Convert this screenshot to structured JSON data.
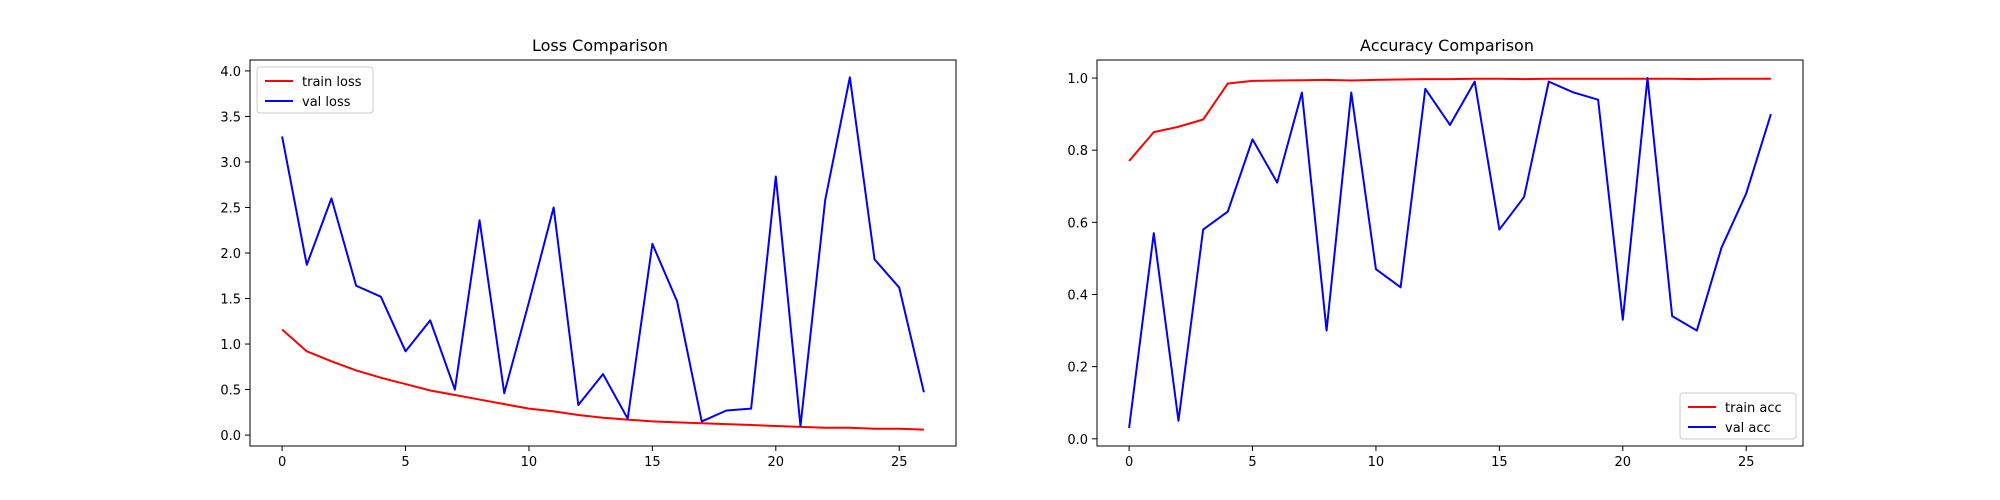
{
  "chart_data": [
    {
      "type": "line",
      "title": "Loss Comparison",
      "xlabel": "",
      "ylabel": "",
      "xlim": [
        -1.3,
        27.3
      ],
      "ylim": [
        -0.12,
        4.12
      ],
      "xticks": [
        0,
        5,
        10,
        15,
        20,
        25
      ],
      "yticks": [
        0.0,
        0.5,
        1.0,
        1.5,
        2.0,
        2.5,
        3.0,
        3.5,
        4.0
      ],
      "ytick_labels": [
        "0.0",
        "0.5",
        "1.0",
        "1.5",
        "2.0",
        "2.5",
        "3.0",
        "3.5",
        "4.0"
      ],
      "legend_position": "upper-left",
      "grid": false,
      "x": [
        0,
        1,
        2,
        3,
        4,
        5,
        6,
        7,
        8,
        9,
        10,
        11,
        12,
        13,
        14,
        15,
        16,
        17,
        18,
        19,
        20,
        21,
        22,
        23,
        24,
        25,
        26
      ],
      "series": [
        {
          "name": "train loss",
          "color": "#ff0000",
          "values": [
            1.16,
            0.92,
            0.81,
            0.71,
            0.63,
            0.56,
            0.49,
            0.44,
            0.39,
            0.34,
            0.29,
            0.26,
            0.22,
            0.19,
            0.17,
            0.15,
            0.14,
            0.13,
            0.12,
            0.11,
            0.1,
            0.09,
            0.08,
            0.08,
            0.07,
            0.07,
            0.06
          ]
        },
        {
          "name": "val loss",
          "color": "#0000ff",
          "values": [
            3.28,
            1.87,
            2.6,
            1.64,
            1.52,
            0.92,
            1.26,
            0.5,
            2.36,
            0.46,
            1.46,
            2.5,
            0.33,
            0.67,
            0.18,
            2.1,
            1.47,
            0.15,
            0.27,
            0.29,
            2.84,
            0.1,
            2.58,
            3.93,
            1.93,
            1.62,
            0.47
          ]
        }
      ]
    },
    {
      "type": "line",
      "title": "Accuracy Comparison",
      "xlabel": "",
      "ylabel": "",
      "xlim": [
        -1.3,
        27.3
      ],
      "ylim": [
        -0.02,
        1.05
      ],
      "xticks": [
        0,
        5,
        10,
        15,
        20,
        25
      ],
      "yticks": [
        0.0,
        0.2,
        0.4,
        0.6,
        0.8,
        1.0
      ],
      "ytick_labels": [
        "0.0",
        "0.2",
        "0.4",
        "0.6",
        "0.8",
        "1.0"
      ],
      "legend_position": "lower-right",
      "grid": false,
      "x": [
        0,
        1,
        2,
        3,
        4,
        5,
        6,
        7,
        8,
        9,
        10,
        11,
        12,
        13,
        14,
        15,
        16,
        17,
        18,
        19,
        20,
        21,
        22,
        23,
        24,
        25,
        26
      ],
      "series": [
        {
          "name": "train acc",
          "color": "#ff0000",
          "values": [
            0.77,
            0.85,
            0.865,
            0.885,
            0.985,
            0.992,
            0.993,
            0.994,
            0.995,
            0.993,
            0.995,
            0.996,
            0.997,
            0.997,
            0.998,
            0.998,
            0.997,
            0.998,
            0.998,
            0.998,
            0.998,
            0.998,
            0.998,
            0.997,
            0.998,
            0.998,
            0.998
          ]
        },
        {
          "name": "val acc",
          "color": "#0000ff",
          "values": [
            0.03,
            0.57,
            0.05,
            0.58,
            0.63,
            0.83,
            0.71,
            0.96,
            0.3,
            0.96,
            0.47,
            0.42,
            0.97,
            0.87,
            0.99,
            0.58,
            0.67,
            0.99,
            0.96,
            0.94,
            0.33,
            1.0,
            0.34,
            0.3,
            0.53,
            0.68,
            0.9
          ]
        }
      ]
    }
  ]
}
